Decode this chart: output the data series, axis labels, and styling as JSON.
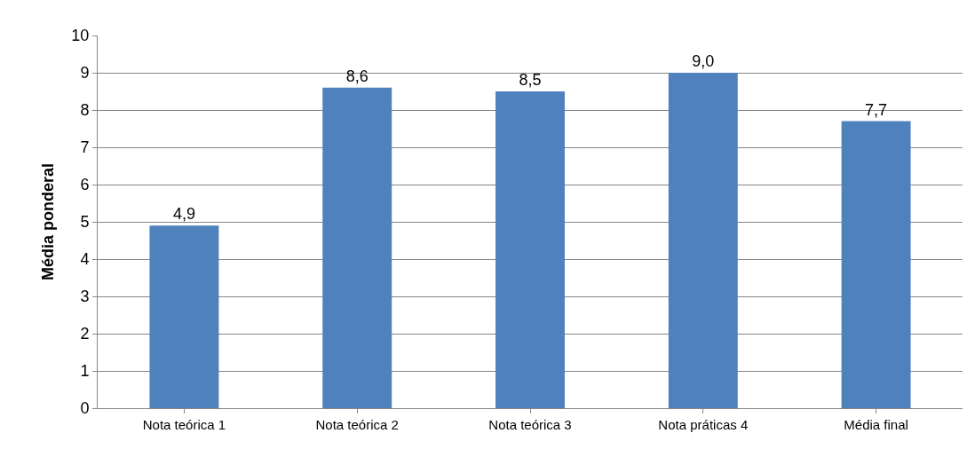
{
  "chart_data": {
    "type": "bar",
    "ylabel": "Média ponderal",
    "categories": [
      "Nota teórica 1",
      "Nota teórica 2",
      "Nota teórica 3",
      "Nota práticas 4",
      "Média final"
    ],
    "values": [
      4.9,
      8.6,
      8.5,
      9.0,
      7.7
    ],
    "value_labels": [
      "4,9",
      "8,6",
      "8,5",
      "9,0",
      "7,7"
    ],
    "color": "#4f81bd",
    "ylim": [
      0,
      10
    ],
    "yticks": [
      0,
      1,
      2,
      3,
      4,
      5,
      6,
      7,
      8,
      9,
      10
    ],
    "grid": "y",
    "legend": false
  }
}
